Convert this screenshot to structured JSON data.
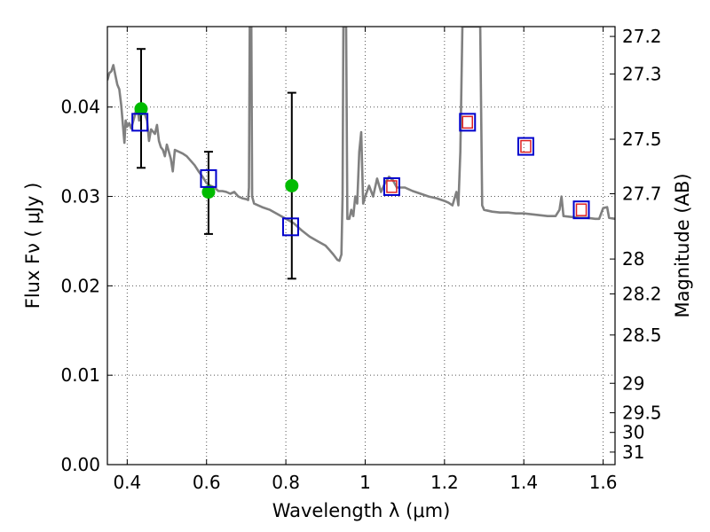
{
  "chart_data": {
    "type": "scatter",
    "xlabel": "Wavelength  λ (μm)",
    "ylabel": "Flux  Fν  ( μJy )",
    "ylabel_right": "Magnitude (AB)",
    "xlim": [
      0.35,
      1.63
    ],
    "ylim": [
      0.0,
      0.049
    ],
    "grid": true,
    "x_ticks": [
      0.4,
      0.6,
      0.8,
      1.0,
      1.2,
      1.4,
      1.6
    ],
    "x_tick_labels": [
      "0.4",
      "0.6",
      "0.8",
      "1",
      "1.2",
      "1.4",
      "1.6"
    ],
    "y_ticks": [
      0.0,
      0.01,
      0.02,
      0.03,
      0.04
    ],
    "y_tick_labels": [
      "0.00",
      "0.01",
      "0.02",
      "0.03",
      "0.04"
    ],
    "right_ticks": [
      {
        "label": "27.2",
        "flux": 0.0479
      },
      {
        "label": "27.3",
        "flux": 0.0437
      },
      {
        "label": "27.5",
        "flux": 0.0364
      },
      {
        "label": "27.7",
        "flux": 0.0303
      },
      {
        "label": "28",
        "flux": 0.023
      },
      {
        "label": "28.2",
        "flux": 0.0191
      },
      {
        "label": "28.5",
        "flux": 0.0145
      },
      {
        "label": "29",
        "flux": 0.0091
      },
      {
        "label": "29.5",
        "flux": 0.0058
      },
      {
        "label": "30",
        "flux": 0.0036
      },
      {
        "label": "31",
        "flux": 0.0014
      }
    ],
    "series": [
      {
        "kind": "model-spectrum",
        "color": "#808080",
        "points": [
          [
            0.35,
            0.043
          ],
          [
            0.355,
            0.0438
          ],
          [
            0.36,
            0.044
          ],
          [
            0.365,
            0.0447
          ],
          [
            0.37,
            0.0436
          ],
          [
            0.375,
            0.0425
          ],
          [
            0.38,
            0.042
          ],
          [
            0.385,
            0.0402
          ],
          [
            0.39,
            0.0375
          ],
          [
            0.393,
            0.036
          ],
          [
            0.396,
            0.0385
          ],
          [
            0.4,
            0.0378
          ],
          [
            0.405,
            0.0382
          ],
          [
            0.41,
            0.0376
          ],
          [
            0.42,
            0.0392
          ],
          [
            0.425,
            0.0402
          ],
          [
            0.43,
            0.0385
          ],
          [
            0.44,
            0.0398
          ],
          [
            0.45,
            0.0385
          ],
          [
            0.455,
            0.0362
          ],
          [
            0.46,
            0.0375
          ],
          [
            0.47,
            0.037
          ],
          [
            0.475,
            0.038
          ],
          [
            0.48,
            0.0362
          ],
          [
            0.485,
            0.0355
          ],
          [
            0.49,
            0.0352
          ],
          [
            0.495,
            0.0345
          ],
          [
            0.5,
            0.0358
          ],
          [
            0.51,
            0.0342
          ],
          [
            0.515,
            0.0328
          ],
          [
            0.52,
            0.0352
          ],
          [
            0.53,
            0.035
          ],
          [
            0.54,
            0.0348
          ],
          [
            0.55,
            0.0345
          ],
          [
            0.56,
            0.034
          ],
          [
            0.57,
            0.0335
          ],
          [
            0.58,
            0.0328
          ],
          [
            0.59,
            0.0322
          ],
          [
            0.6,
            0.0315
          ],
          [
            0.61,
            0.0312
          ],
          [
            0.62,
            0.031
          ],
          [
            0.63,
            0.0306
          ],
          [
            0.64,
            0.0306
          ],
          [
            0.65,
            0.0305
          ],
          [
            0.66,
            0.0303
          ],
          [
            0.67,
            0.0305
          ],
          [
            0.68,
            0.03
          ],
          [
            0.69,
            0.0298
          ],
          [
            0.7,
            0.0297
          ],
          [
            0.705,
            0.0296
          ],
          [
            0.707,
            0.031
          ],
          [
            0.709,
            0.049
          ],
          [
            0.713,
            0.049
          ],
          [
            0.715,
            0.03
          ],
          [
            0.72,
            0.0292
          ],
          [
            0.74,
            0.0288
          ],
          [
            0.76,
            0.0285
          ],
          [
            0.78,
            0.028
          ],
          [
            0.8,
            0.0275
          ],
          [
            0.82,
            0.027
          ],
          [
            0.84,
            0.0262
          ],
          [
            0.86,
            0.0255
          ],
          [
            0.88,
            0.025
          ],
          [
            0.9,
            0.0245
          ],
          [
            0.91,
            0.024
          ],
          [
            0.92,
            0.0235
          ],
          [
            0.93,
            0.0229
          ],
          [
            0.935,
            0.0228
          ],
          [
            0.94,
            0.0235
          ],
          [
            0.943,
            0.03
          ],
          [
            0.945,
            0.049
          ],
          [
            0.952,
            0.049
          ],
          [
            0.955,
            0.0275
          ],
          [
            0.96,
            0.0275
          ],
          [
            0.965,
            0.0285
          ],
          [
            0.97,
            0.0278
          ],
          [
            0.975,
            0.03
          ],
          [
            0.98,
            0.0292
          ],
          [
            0.985,
            0.035
          ],
          [
            0.99,
            0.0372
          ],
          [
            0.995,
            0.0292
          ],
          [
            1.0,
            0.03
          ],
          [
            1.01,
            0.0312
          ],
          [
            1.02,
            0.03
          ],
          [
            1.03,
            0.032
          ],
          [
            1.04,
            0.0305
          ],
          [
            1.05,
            0.0315
          ],
          [
            1.06,
            0.0322
          ],
          [
            1.07,
            0.0318
          ],
          [
            1.08,
            0.031
          ],
          [
            1.1,
            0.031
          ],
          [
            1.12,
            0.0306
          ],
          [
            1.14,
            0.0303
          ],
          [
            1.16,
            0.03
          ],
          [
            1.18,
            0.0298
          ],
          [
            1.2,
            0.0295
          ],
          [
            1.21,
            0.0293
          ],
          [
            1.22,
            0.029
          ],
          [
            1.23,
            0.0305
          ],
          [
            1.235,
            0.029
          ],
          [
            1.24,
            0.035
          ],
          [
            1.245,
            0.049
          ],
          [
            1.29,
            0.049
          ],
          [
            1.295,
            0.029
          ],
          [
            1.3,
            0.0285
          ],
          [
            1.32,
            0.0283
          ],
          [
            1.34,
            0.0282
          ],
          [
            1.36,
            0.0282
          ],
          [
            1.38,
            0.0281
          ],
          [
            1.4,
            0.0281
          ],
          [
            1.42,
            0.028
          ],
          [
            1.44,
            0.0279
          ],
          [
            1.46,
            0.0278
          ],
          [
            1.48,
            0.0278
          ],
          [
            1.49,
            0.0285
          ],
          [
            1.495,
            0.03
          ],
          [
            1.5,
            0.0278
          ],
          [
            1.52,
            0.0277
          ],
          [
            1.54,
            0.0276
          ],
          [
            1.56,
            0.0276
          ],
          [
            1.58,
            0.0275
          ],
          [
            1.59,
            0.0275
          ],
          [
            1.6,
            0.0287
          ],
          [
            1.61,
            0.0288
          ],
          [
            1.615,
            0.0276
          ],
          [
            1.63,
            0.0275
          ]
        ]
      },
      {
        "kind": "observed-photometry",
        "color": "#00bb00",
        "points": [
          {
            "x": 0.435,
            "y": 0.0398,
            "yerr_low": 0.0332,
            "yerr_high": 0.0465
          },
          {
            "x": 0.605,
            "y": 0.0305,
            "yerr_low": 0.0258,
            "yerr_high": 0.035
          },
          {
            "x": 0.815,
            "y": 0.0312,
            "yerr_low": 0.0208,
            "yerr_high": 0.0416
          }
        ]
      },
      {
        "kind": "model-photometry",
        "color": "#0000cc",
        "points": [
          {
            "x": 0.432,
            "y": 0.0383
          },
          {
            "x": 0.605,
            "y": 0.032
          },
          {
            "x": 0.812,
            "y": 0.0266
          },
          {
            "x": 1.067,
            "y": 0.0311
          },
          {
            "x": 1.258,
            "y": 0.0383
          },
          {
            "x": 1.405,
            "y": 0.0356
          },
          {
            "x": 1.545,
            "y": 0.0285
          }
        ]
      },
      {
        "kind": "photometry-inner-marker",
        "color": "#dd2222",
        "points": [
          {
            "x": 1.067,
            "y": 0.0311
          },
          {
            "x": 1.258,
            "y": 0.0383
          },
          {
            "x": 1.405,
            "y": 0.0356
          },
          {
            "x": 1.545,
            "y": 0.0285
          }
        ]
      }
    ]
  }
}
